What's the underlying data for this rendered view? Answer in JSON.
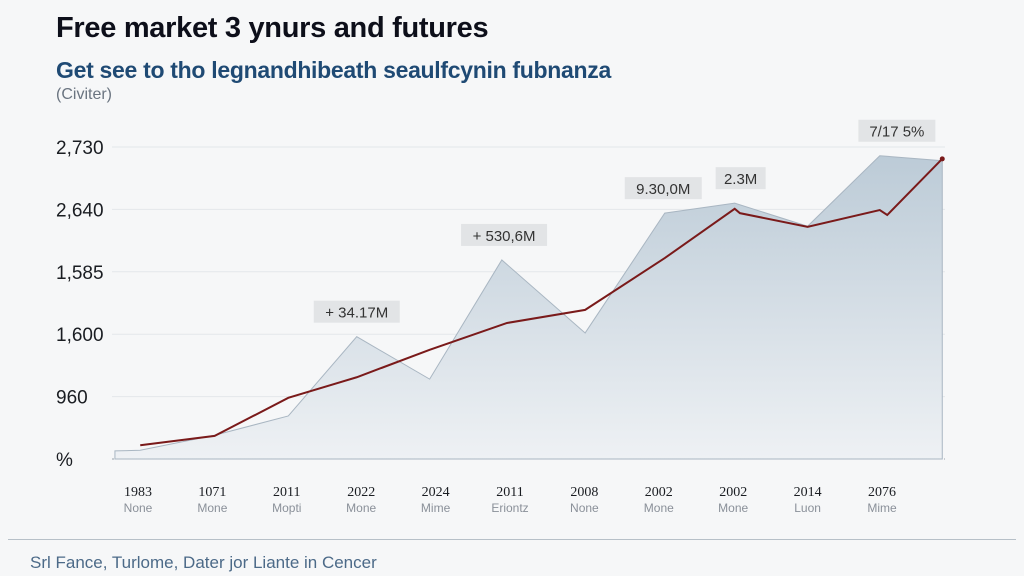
{
  "chart_data": {
    "type": "area",
    "title": "Free market 3 ynurs and futures",
    "subtitle": "Get see to tho legnandhibeath seaulfcynin fubnanza",
    "unit_label": "(Civiter)",
    "footer": "Srl Fance, Turlome, Dater jor Liante in Cencer",
    "y_tick_labels": [
      "%",
      "960",
      "1,600",
      "1,585",
      "2,640",
      "2,730"
    ],
    "ylim": [
      0,
      5
    ],
    "x_tick_labels": [
      {
        "year": "1983",
        "sub": "None"
      },
      {
        "year": "1071",
        "sub": "Mone"
      },
      {
        "year": "2011",
        "sub": "Mopti"
      },
      {
        "year": "2022",
        "sub": "Mone"
      },
      {
        "year": "2024",
        "sub": "Mime"
      },
      {
        "year": "2011",
        "sub": "Eriontz"
      },
      {
        "year": "2008",
        "sub": "None"
      },
      {
        "year": "2002",
        "sub": "Mone"
      },
      {
        "year": "2002",
        "sub": "Mone"
      },
      {
        "year": "2014",
        "sub": "Luon"
      },
      {
        "year": "2076",
        "sub": "Mime"
      }
    ],
    "grid": true,
    "series": [
      {
        "name": "area",
        "color": "#c9d5df",
        "x": [
          -0.31,
          0.03,
          1.03,
          2.02,
          2.94,
          3.92,
          4.89,
          6.01,
          7.08,
          8.02,
          9.0,
          9.97,
          10.81
        ],
        "y": [
          0.13,
          0.14,
          0.38,
          0.69,
          1.96,
          1.28,
          3.19,
          2.02,
          3.94,
          4.1,
          3.73,
          4.86,
          4.78
        ]
      },
      {
        "name": "line",
        "color": "#7a1a1a",
        "x": [
          0.03,
          1.03,
          2.02,
          2.94,
          3.92,
          4.96,
          6.01,
          7.08,
          8.02,
          8.09,
          9.0,
          9.97,
          10.07,
          10.81
        ],
        "y": [
          0.22,
          0.37,
          0.98,
          1.31,
          1.75,
          2.18,
          2.39,
          3.22,
          4.01,
          3.94,
          3.72,
          3.99,
          3.91,
          4.81
        ]
      }
    ],
    "annotations": [
      {
        "text": "+ 34.17M",
        "x": 2.94,
        "y": 1.96
      },
      {
        "text": "+ 530,6M",
        "x": 4.92,
        "y": 3.19
      },
      {
        "text": "9.30,0M",
        "x": 7.06,
        "y": 3.94
      },
      {
        "text": "2.3M",
        "x": 8.1,
        "y": 4.1
      },
      {
        "text": "7/17 5%",
        "x": 10.2,
        "y": 4.86
      }
    ]
  }
}
